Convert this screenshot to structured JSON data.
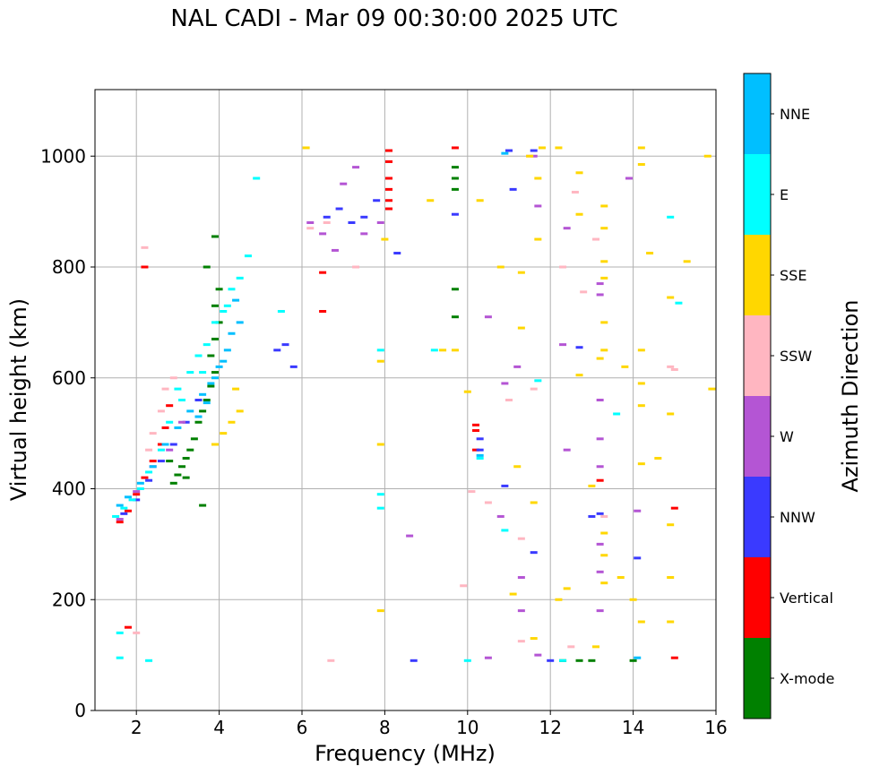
{
  "chart_data": {
    "type": "scatter",
    "title": "NAL CADI - Mar 09 00:30:00 2025 UTC",
    "xlabel": "Frequency (MHz)",
    "ylabel": "Virtual height (km)",
    "xlim": [
      1,
      16
    ],
    "ylim": [
      0,
      1120
    ],
    "xticks": [
      2,
      4,
      6,
      8,
      10,
      12,
      14,
      16
    ],
    "yticks": [
      0,
      200,
      400,
      600,
      800,
      1000
    ],
    "grid": true,
    "colorbar": {
      "label": "Azimuth Direction",
      "categories": [
        {
          "name": "X-mode",
          "color": "#008000"
        },
        {
          "name": "Vertical",
          "color": "#ff0000"
        },
        {
          "name": "NNW",
          "color": "#3a3aff"
        },
        {
          "name": "W",
          "color": "#b455d4"
        },
        {
          "name": "SSW",
          "color": "#ffb6c1"
        },
        {
          "name": "SSE",
          "color": "#ffd700"
        },
        {
          "name": "E",
          "color": "#00ffff"
        },
        {
          "name": "NNE",
          "color": "#00bfff"
        }
      ]
    },
    "series": [
      {
        "name": "X-mode",
        "points": [
          [
            2.9,
            410
          ],
          [
            3.0,
            425
          ],
          [
            3.1,
            440
          ],
          [
            3.2,
            455
          ],
          [
            3.3,
            470
          ],
          [
            3.4,
            490
          ],
          [
            3.5,
            520
          ],
          [
            3.6,
            540
          ],
          [
            3.7,
            560
          ],
          [
            3.8,
            585
          ],
          [
            3.9,
            610
          ],
          [
            3.8,
            640
          ],
          [
            3.9,
            670
          ],
          [
            4.0,
            700
          ],
          [
            3.9,
            730
          ],
          [
            4.0,
            760
          ],
          [
            3.7,
            800
          ],
          [
            3.9,
            855
          ],
          [
            9.7,
            980
          ],
          [
            9.7,
            960
          ],
          [
            9.7,
            940
          ],
          [
            9.7,
            760
          ],
          [
            9.7,
            710
          ],
          [
            12.3,
            90
          ],
          [
            12.7,
            90
          ],
          [
            13.0,
            90
          ],
          [
            14.0,
            90
          ],
          [
            3.6,
            370
          ],
          [
            3.2,
            420
          ],
          [
            2.8,
            450
          ]
        ]
      },
      {
        "name": "Vertical",
        "points": [
          [
            1.6,
            340
          ],
          [
            1.8,
            360
          ],
          [
            2.0,
            390
          ],
          [
            2.2,
            420
          ],
          [
            2.4,
            450
          ],
          [
            2.6,
            480
          ],
          [
            2.7,
            510
          ],
          [
            2.8,
            550
          ],
          [
            8.1,
            1010
          ],
          [
            8.1,
            990
          ],
          [
            8.1,
            960
          ],
          [
            8.1,
            940
          ],
          [
            8.1,
            920
          ],
          [
            8.1,
            905
          ],
          [
            10.2,
            515
          ],
          [
            10.2,
            505
          ],
          [
            10.2,
            470
          ],
          [
            15.0,
            365
          ],
          [
            15.0,
            95
          ],
          [
            13.2,
            415
          ],
          [
            2.2,
            800
          ],
          [
            6.5,
            790
          ],
          [
            6.5,
            720
          ],
          [
            1.8,
            150
          ],
          [
            9.7,
            1015
          ]
        ]
      },
      {
        "name": "NNW",
        "points": [
          [
            1.7,
            355
          ],
          [
            2.0,
            380
          ],
          [
            2.3,
            415
          ],
          [
            2.6,
            450
          ],
          [
            2.9,
            480
          ],
          [
            3.2,
            520
          ],
          [
            3.5,
            560
          ],
          [
            5.4,
            650
          ],
          [
            5.6,
            660
          ],
          [
            5.8,
            620
          ],
          [
            6.6,
            890
          ],
          [
            6.9,
            905
          ],
          [
            7.2,
            880
          ],
          [
            7.5,
            890
          ],
          [
            7.8,
            920
          ],
          [
            8.3,
            825
          ],
          [
            9.7,
            895
          ],
          [
            10.3,
            470
          ],
          [
            10.3,
            490
          ],
          [
            11.0,
            1010
          ],
          [
            11.6,
            1010
          ],
          [
            12.7,
            655
          ],
          [
            13.0,
            350
          ],
          [
            13.2,
            355
          ],
          [
            12.0,
            90
          ],
          [
            8.7,
            90
          ],
          [
            14.1,
            275
          ],
          [
            10.9,
            405
          ],
          [
            11.6,
            285
          ],
          [
            11.1,
            940
          ]
        ]
      },
      {
        "name": "W",
        "points": [
          [
            1.6,
            345
          ],
          [
            2.0,
            395
          ],
          [
            2.4,
            440
          ],
          [
            2.8,
            470
          ],
          [
            3.1,
            520
          ],
          [
            6.2,
            880
          ],
          [
            6.5,
            860
          ],
          [
            6.8,
            830
          ],
          [
            7.0,
            950
          ],
          [
            7.3,
            980
          ],
          [
            7.5,
            860
          ],
          [
            7.9,
            880
          ],
          [
            8.6,
            315
          ],
          [
            10.5,
            710
          ],
          [
            10.8,
            350
          ],
          [
            10.9,
            590
          ],
          [
            11.2,
            620
          ],
          [
            11.6,
            1000
          ],
          [
            11.7,
            910
          ],
          [
            12.4,
            870
          ],
          [
            12.4,
            470
          ],
          [
            13.2,
            770
          ],
          [
            13.2,
            750
          ],
          [
            13.2,
            560
          ],
          [
            13.2,
            490
          ],
          [
            13.2,
            440
          ],
          [
            13.2,
            300
          ],
          [
            13.2,
            250
          ],
          [
            13.2,
            180
          ],
          [
            13.9,
            960
          ],
          [
            14.1,
            360
          ],
          [
            10.5,
            95
          ],
          [
            11.3,
            180
          ],
          [
            11.7,
            100
          ],
          [
            11.3,
            240
          ],
          [
            12.3,
            660
          ]
        ]
      },
      {
        "name": "SSW",
        "points": [
          [
            2.4,
            500
          ],
          [
            2.6,
            540
          ],
          [
            2.7,
            580
          ],
          [
            2.9,
            600
          ],
          [
            2.3,
            470
          ],
          [
            2.2,
            835
          ],
          [
            6.2,
            870
          ],
          [
            6.6,
            880
          ],
          [
            7.3,
            800
          ],
          [
            10.1,
            395
          ],
          [
            10.5,
            375
          ],
          [
            11.0,
            560
          ],
          [
            11.3,
            310
          ],
          [
            11.5,
            1000
          ],
          [
            11.6,
            580
          ],
          [
            12.3,
            800
          ],
          [
            12.6,
            935
          ],
          [
            12.8,
            755
          ],
          [
            13.1,
            850
          ],
          [
            14.9,
            620
          ],
          [
            15.0,
            615
          ],
          [
            9.9,
            225
          ],
          [
            6.7,
            90
          ],
          [
            12.5,
            115
          ],
          [
            11.3,
            125
          ],
          [
            2.0,
            140
          ],
          [
            13.3,
            350
          ]
        ]
      },
      {
        "name": "SSE",
        "points": [
          [
            3.9,
            480
          ],
          [
            4.1,
            500
          ],
          [
            4.3,
            520
          ],
          [
            4.5,
            540
          ],
          [
            4.4,
            580
          ],
          [
            7.9,
            630
          ],
          [
            7.9,
            480
          ],
          [
            7.9,
            180
          ],
          [
            8.0,
            850
          ],
          [
            9.4,
            650
          ],
          [
            10.3,
            920
          ],
          [
            10.8,
            800
          ],
          [
            11.3,
            790
          ],
          [
            11.3,
            690
          ],
          [
            11.2,
            440
          ],
          [
            11.5,
            1000
          ],
          [
            11.7,
            960
          ],
          [
            11.7,
            850
          ],
          [
            12.2,
            1015
          ],
          [
            12.4,
            220
          ],
          [
            12.7,
            970
          ],
          [
            12.7,
            895
          ],
          [
            12.7,
            605
          ],
          [
            13.0,
            405
          ],
          [
            13.1,
            115
          ],
          [
            13.3,
            910
          ],
          [
            13.3,
            870
          ],
          [
            13.3,
            810
          ],
          [
            13.3,
            780
          ],
          [
            13.3,
            700
          ],
          [
            13.3,
            650
          ],
          [
            13.3,
            320
          ],
          [
            13.3,
            280
          ],
          [
            13.3,
            230
          ],
          [
            13.7,
            240
          ],
          [
            14.0,
            200
          ],
          [
            14.2,
            1015
          ],
          [
            14.2,
            985
          ],
          [
            14.2,
            650
          ],
          [
            14.2,
            590
          ],
          [
            14.2,
            550
          ],
          [
            14.2,
            445
          ],
          [
            14.2,
            160
          ],
          [
            14.4,
            825
          ],
          [
            14.6,
            455
          ],
          [
            14.9,
            745
          ],
          [
            14.9,
            535
          ],
          [
            14.9,
            335
          ],
          [
            14.9,
            240
          ],
          [
            14.9,
            160
          ],
          [
            15.3,
            810
          ],
          [
            15.8,
            1000
          ],
          [
            15.9,
            580
          ],
          [
            13.8,
            620
          ],
          [
            13.2,
            635
          ],
          [
            12.2,
            200
          ],
          [
            11.8,
            1015
          ],
          [
            11.6,
            375
          ],
          [
            11.6,
            130
          ],
          [
            11.1,
            210
          ],
          [
            9.1,
            920
          ],
          [
            9.7,
            650
          ],
          [
            10.0,
            575
          ],
          [
            6.1,
            1015
          ]
        ]
      },
      {
        "name": "E",
        "points": [
          [
            1.5,
            350
          ],
          [
            1.7,
            365
          ],
          [
            1.9,
            380
          ],
          [
            2.1,
            400
          ],
          [
            2.3,
            430
          ],
          [
            2.6,
            470
          ],
          [
            2.8,
            520
          ],
          [
            3.1,
            560
          ],
          [
            3.3,
            610
          ],
          [
            3.5,
            640
          ],
          [
            3.7,
            660
          ],
          [
            3.9,
            700
          ],
          [
            4.1,
            720
          ],
          [
            4.3,
            760
          ],
          [
            4.5,
            780
          ],
          [
            4.7,
            820
          ],
          [
            4.2,
            730
          ],
          [
            3.6,
            610
          ],
          [
            3.0,
            580
          ],
          [
            1.6,
            140
          ],
          [
            1.6,
            95
          ],
          [
            2.3,
            90
          ],
          [
            7.9,
            390
          ],
          [
            7.9,
            365
          ],
          [
            7.9,
            650
          ],
          [
            9.2,
            650
          ],
          [
            10.3,
            455
          ],
          [
            10.0,
            90
          ],
          [
            10.9,
            325
          ],
          [
            11.7,
            595
          ],
          [
            13.6,
            535
          ],
          [
            14.9,
            890
          ],
          [
            15.1,
            735
          ],
          [
            12.3,
            90
          ],
          [
            4.9,
            960
          ],
          [
            5.5,
            720
          ]
        ]
      },
      {
        "name": "NNE",
        "points": [
          [
            1.6,
            370
          ],
          [
            1.8,
            385
          ],
          [
            2.1,
            410
          ],
          [
            2.4,
            440
          ],
          [
            2.7,
            480
          ],
          [
            3.0,
            510
          ],
          [
            3.3,
            540
          ],
          [
            3.6,
            570
          ],
          [
            3.9,
            600
          ],
          [
            4.1,
            630
          ],
          [
            4.3,
            680
          ],
          [
            4.5,
            700
          ],
          [
            4.2,
            650
          ],
          [
            4.0,
            620
          ],
          [
            3.8,
            590
          ],
          [
            3.7,
            555
          ],
          [
            3.5,
            530
          ],
          [
            4.4,
            740
          ],
          [
            10.3,
            460
          ],
          [
            10.9,
            1005
          ],
          [
            14.1,
            95
          ]
        ]
      }
    ]
  }
}
